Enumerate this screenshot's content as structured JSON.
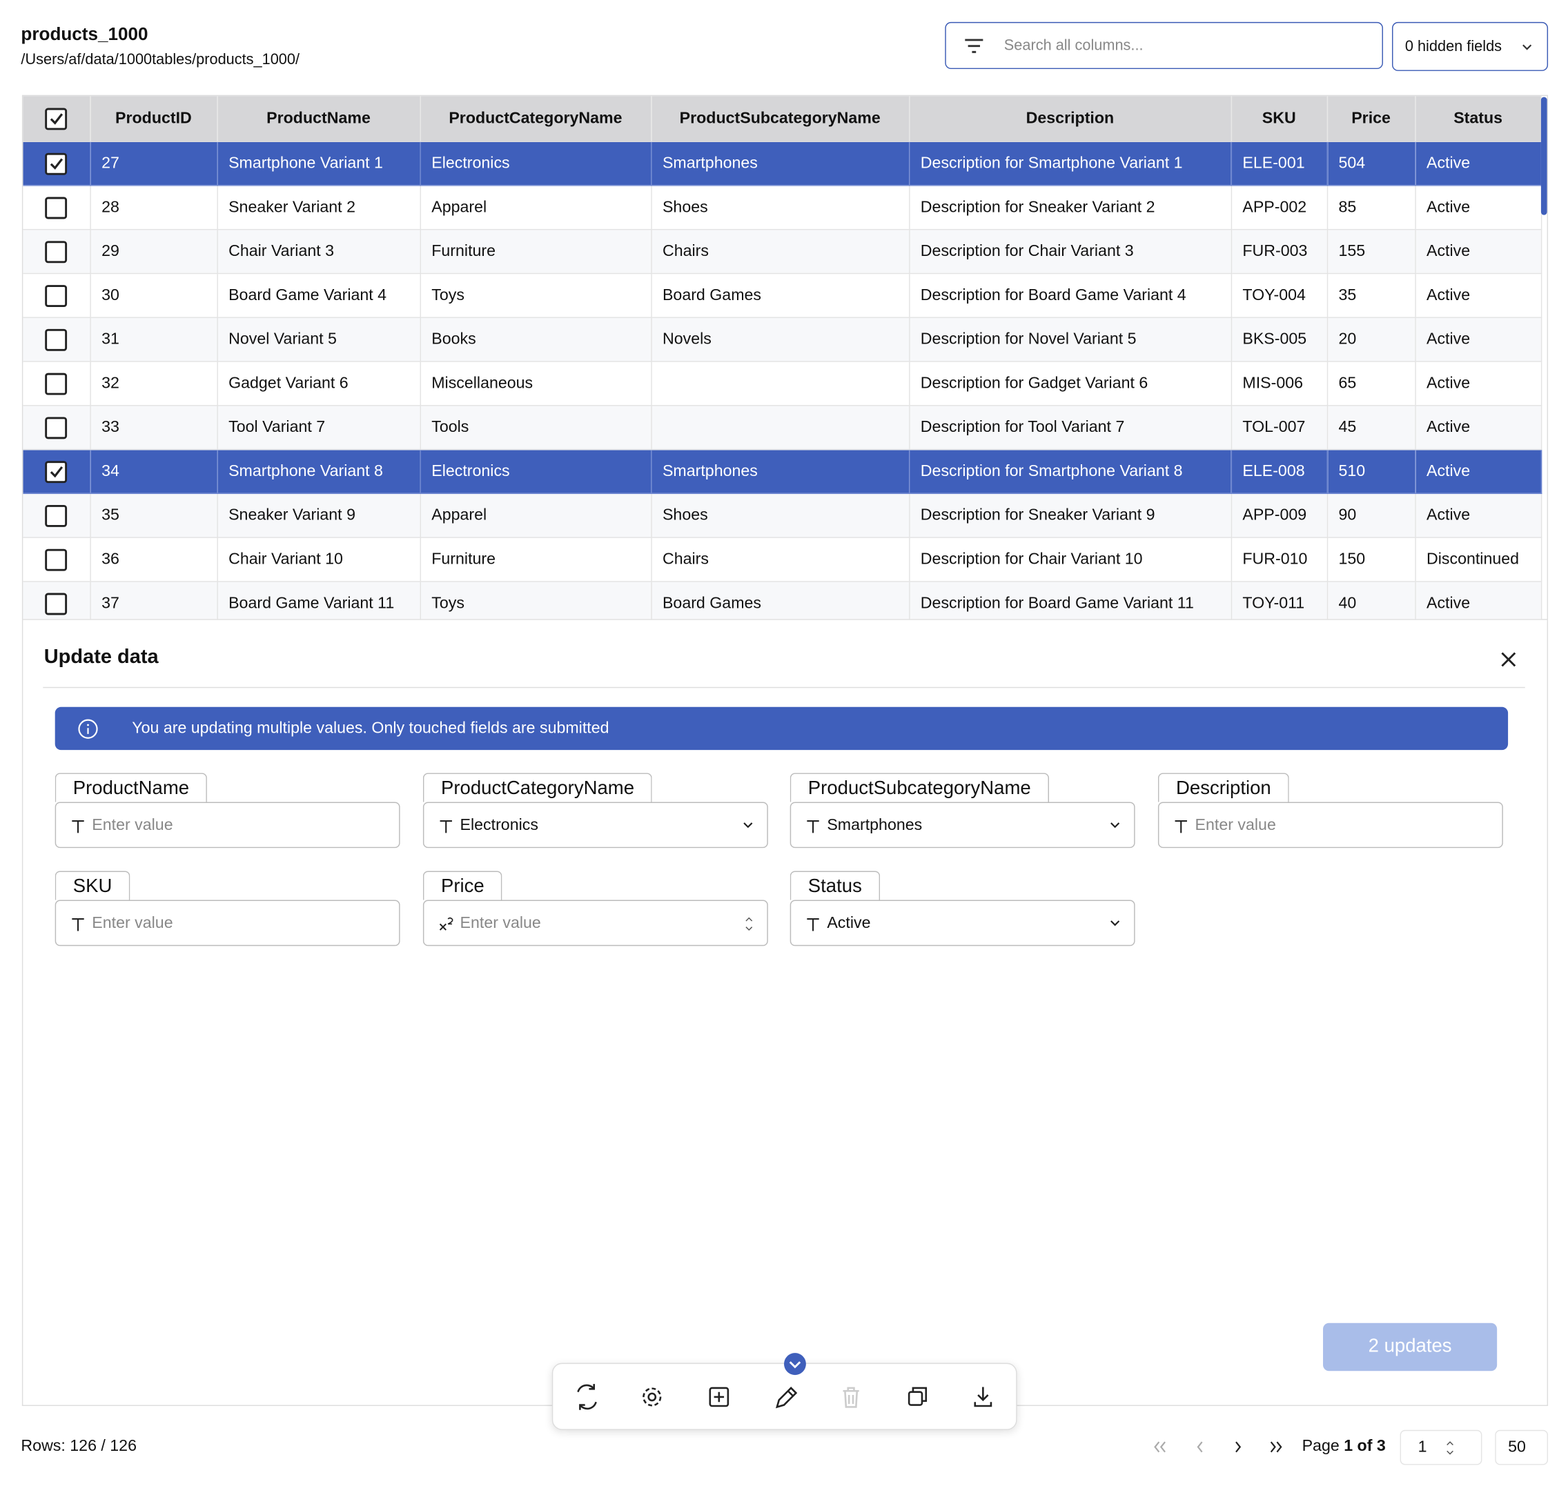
{
  "header": {
    "title": "products_1000",
    "path": "/Users/af/data/1000tables/products_1000/",
    "search_placeholder": "Search all columns...",
    "hidden_fields": "0 hidden fields"
  },
  "table": {
    "header_checked": true,
    "columns": [
      "ProductID",
      "ProductName",
      "ProductCategoryName",
      "ProductSubcategoryName",
      "Description",
      "SKU",
      "Price",
      "Status"
    ],
    "rows": [
      {
        "selected": true,
        "cells": [
          27,
          "Smartphone Variant 1",
          "Electronics",
          "Smartphones",
          "Description for Smartphone Variant 1",
          "ELE-001",
          504,
          "Active"
        ]
      },
      {
        "selected": false,
        "cells": [
          28,
          "Sneaker Variant 2",
          "Apparel",
          "Shoes",
          "Description for Sneaker Variant 2",
          "APP-002",
          85,
          "Active"
        ]
      },
      {
        "selected": false,
        "cells": [
          29,
          "Chair Variant 3",
          "Furniture",
          "Chairs",
          "Description for Chair Variant 3",
          "FUR-003",
          155,
          "Active"
        ]
      },
      {
        "selected": false,
        "cells": [
          30,
          "Board Game Variant 4",
          "Toys",
          "Board Games",
          "Description for Board Game Variant 4",
          "TOY-004",
          35,
          "Active"
        ]
      },
      {
        "selected": false,
        "cells": [
          31,
          "Novel Variant 5",
          "Books",
          "Novels",
          "Description for Novel Variant 5",
          "BKS-005",
          20,
          "Active"
        ]
      },
      {
        "selected": false,
        "cells": [
          32,
          "Gadget Variant 6",
          "Miscellaneous",
          null,
          "Description for Gadget Variant 6",
          "MIS-006",
          65,
          "Active"
        ]
      },
      {
        "selected": false,
        "cells": [
          33,
          "Tool Variant 7",
          "Tools",
          null,
          "Description for Tool Variant 7",
          "TOL-007",
          45,
          "Active"
        ]
      },
      {
        "selected": true,
        "cells": [
          34,
          "Smartphone Variant 8",
          "Electronics",
          "Smartphones",
          "Description for Smartphone Variant 8",
          "ELE-008",
          510,
          "Active"
        ]
      },
      {
        "selected": false,
        "cells": [
          35,
          "Sneaker Variant 9",
          "Apparel",
          "Shoes",
          "Description for Sneaker Variant 9",
          "APP-009",
          90,
          "Active"
        ]
      },
      {
        "selected": false,
        "cells": [
          36,
          "Chair Variant 10",
          "Furniture",
          "Chairs",
          "Description for Chair Variant 10",
          "FUR-010",
          150,
          "Discontinued"
        ]
      },
      {
        "selected": false,
        "cells": [
          37,
          "Board Game Variant 11",
          "Toys",
          "Board Games",
          "Description for Board Game Variant 11",
          "TOY-011",
          40,
          "Active"
        ]
      }
    ]
  },
  "panel": {
    "title": "Update data",
    "notice": "You are updating multiple values. Only touched fields are submitted",
    "fields": [
      {
        "label": "ProductName",
        "placeholder": "Enter value",
        "icon": "text",
        "dropdown": false
      },
      {
        "label": "ProductCategoryName",
        "value": "Electronics",
        "icon": "text",
        "dropdown": true
      },
      {
        "label": "ProductSubcategoryName",
        "value": "Smartphones",
        "icon": "text",
        "dropdown": true
      },
      {
        "label": "Description",
        "placeholder": "Enter value",
        "icon": "text",
        "dropdown": false
      },
      {
        "label": "SKU",
        "placeholder": "Enter value",
        "icon": "text",
        "dropdown": false
      },
      {
        "label": "Price",
        "placeholder": "Enter value",
        "icon": "number",
        "dropdown": false
      },
      {
        "label": "Status",
        "value": "Active",
        "icon": "text",
        "dropdown": true
      }
    ],
    "submit": "2 updates"
  },
  "footer": {
    "rows": "Rows: 126 / 126",
    "page_label": "Page",
    "page_of": "1 of 3",
    "page_input": 1,
    "page_size": 50
  }
}
